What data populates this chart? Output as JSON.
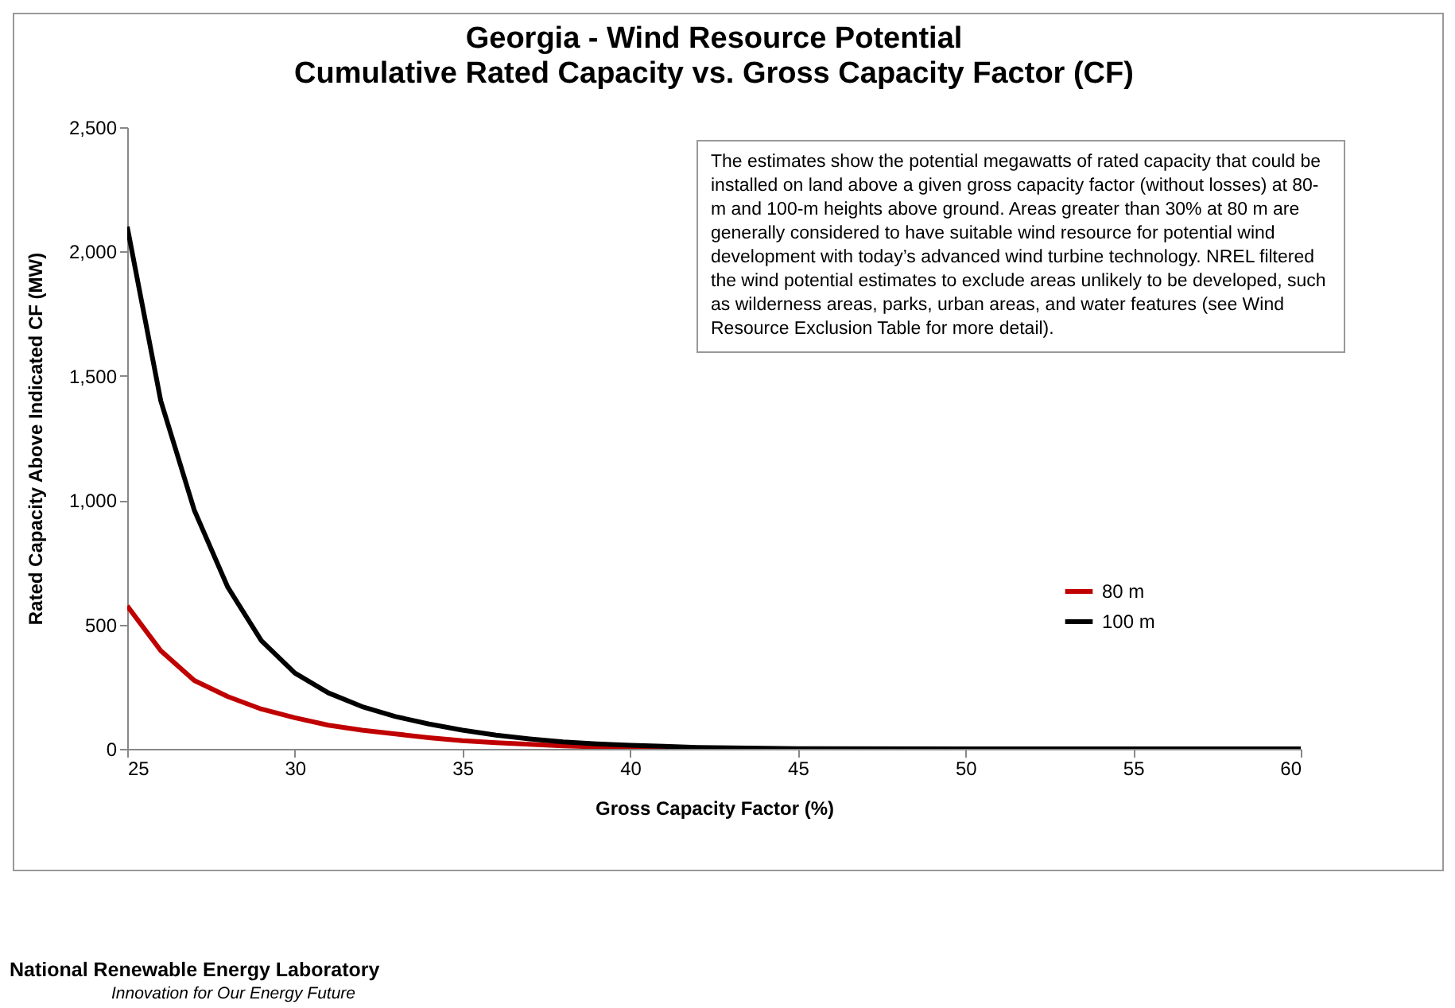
{
  "chart_data": {
    "type": "line",
    "title": "Georgia - Wind Resource Potential",
    "subtitle": "Cumulative Rated Capacity vs. Gross Capacity Factor (CF)",
    "xlabel": "Gross Capacity Factor (%)",
    "ylabel": "Rated Capacity Above Indicated CF (MW)",
    "x": [
      25,
      26,
      27,
      28,
      29,
      30,
      31,
      32,
      33,
      34,
      35,
      36,
      37,
      38,
      39,
      40,
      41,
      42,
      43,
      44,
      45,
      50,
      55,
      60
    ],
    "series": [
      {
        "name": "80 m",
        "color": "#c00000",
        "values": [
          575,
          395,
          275,
          210,
          160,
          125,
          95,
          75,
          60,
          45,
          33,
          25,
          18,
          12,
          8,
          5,
          3,
          2,
          null,
          null,
          null,
          null,
          null,
          null
        ]
      },
      {
        "name": "100 m",
        "color": "#000000",
        "values": [
          2100,
          1400,
          960,
          650,
          435,
          305,
          225,
          170,
          130,
          100,
          75,
          55,
          40,
          28,
          20,
          14,
          10,
          6,
          4,
          2,
          1,
          0,
          0,
          0
        ]
      }
    ],
    "xlim": [
      25,
      60
    ],
    "xticks": [
      25,
      30,
      35,
      40,
      45,
      50,
      55,
      60
    ],
    "ylim": [
      0,
      2500
    ],
    "yticks": [
      {
        "value": 0,
        "label": "0"
      },
      {
        "value": 500,
        "label": "500"
      },
      {
        "value": 1000,
        "label": "1,000"
      },
      {
        "value": 1500,
        "label": "1,500"
      },
      {
        "value": 2000,
        "label": "2,000"
      },
      {
        "value": 2500,
        "label": "2,500"
      }
    ],
    "legend": "right",
    "marker": "none",
    "line_style": "solid",
    "annotations": [
      "The estimates show the potential megawatts of rated capacity that could be installed on land above a given gross capacity factor (without losses) at 80-m and 100-m heights above ground. Areas greater than 30% at 80 m are generally considered to have suitable wind resource for potential wind development with today’s advanced wind turbine technology. NREL filtered the wind potential estimates to exclude areas unlikely to be developed, such as wilderness areas, parks, urban areas, and water features (see Wind Resource Exclusion Table for more detail).",
      "National Renewable Energy Laboratory",
      "Innovation for Our Energy Future"
    ]
  }
}
